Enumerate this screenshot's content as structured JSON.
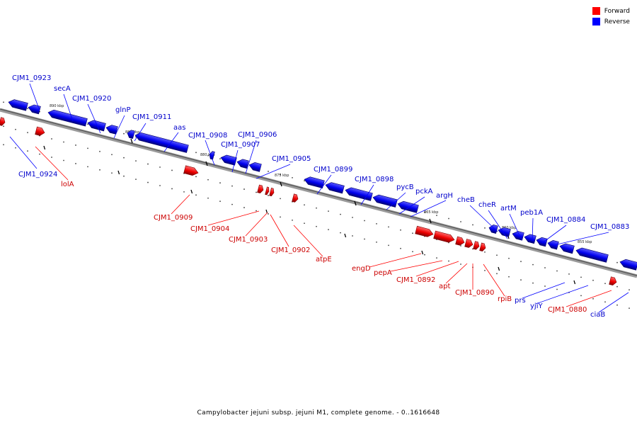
{
  "legend": {
    "forward_label": "Forward",
    "reverse_label": "Reverse",
    "forward_color": "#ff0000",
    "reverse_color": "#0000ff"
  },
  "footer": {
    "caption": "Campylobacter jejuni subsp. jejuni M1, complete genome. - 0..1616648"
  },
  "map": {
    "ticks": [
      "890 kbp",
      "885 kbp",
      "880 kbp",
      "875 kbp",
      "870 kbp",
      "865 kbp",
      "860 kbp",
      "855 kbp"
    ],
    "reverse_genes": [
      "CJM1_0923",
      "secA",
      "CJM1_0920",
      "glnP",
      "CJM1_0911",
      "aas",
      "CJM1_0908",
      "CJM1_0906",
      "CJM1_0907",
      "CJM1_0905",
      "CJM1_0899",
      "CJM1_0898",
      "pycB",
      "pckA",
      "argH",
      "cheB",
      "cheR",
      "artM",
      "peb1A",
      "CJM1_0884",
      "CJM1_0883",
      "CJM1_0924",
      "prs",
      "yjiY",
      "ciaB"
    ],
    "forward_genes": [
      "lolA",
      "CJM1_0909",
      "CJM1_0904",
      "CJM1_0903",
      "CJM1_0902",
      "atpE",
      "engD",
      "pepA",
      "CJM1_0892",
      "apt",
      "CJM1_0890",
      "rpiB",
      "CJM1_0880"
    ]
  }
}
